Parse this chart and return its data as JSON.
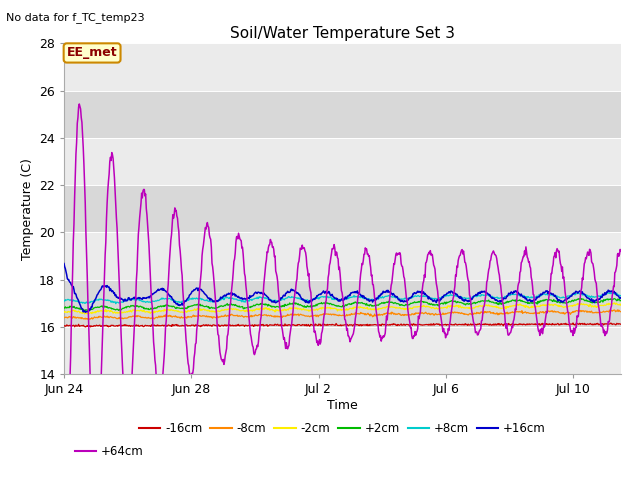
{
  "title": "Soil/Water Temperature Set 3",
  "subtitle": "No data for f_TC_temp23",
  "xlabel": "Time",
  "ylabel": "Temperature (C)",
  "ylim": [
    14,
    28
  ],
  "yticks": [
    14,
    16,
    18,
    20,
    22,
    24,
    26,
    28
  ],
  "legend_label": "EE_met",
  "background_color": "#ffffff",
  "plot_bg_light": "#ebebeb",
  "plot_bg_dark": "#d8d8d8",
  "series_colors": {
    "-16cm": "#cc0000",
    "-8cm": "#ff8800",
    "-2cm": "#ffee00",
    "+2cm": "#00bb00",
    "+8cm": "#00cccc",
    "+16cm": "#0000cc",
    "+64cm": "#bb00bb"
  },
  "tick_days": [
    0,
    4,
    8,
    12,
    16
  ],
  "tick_labels": [
    "Jun 24",
    "Jun 28",
    "Jul 2",
    "Jul 6",
    "Jul 10"
  ],
  "duration_days": 17.5,
  "n_points": 840
}
